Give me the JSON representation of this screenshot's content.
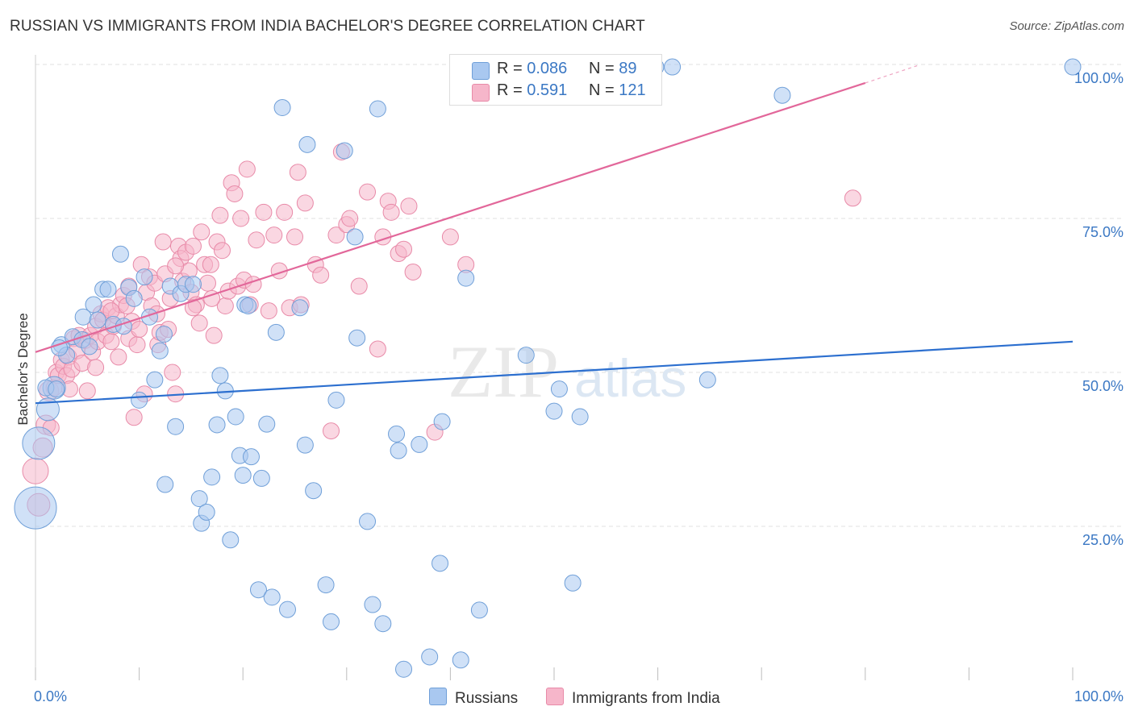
{
  "header": {
    "title": "RUSSIAN VS IMMIGRANTS FROM INDIA BACHELOR'S DEGREE CORRELATION CHART",
    "source": "Source: ZipAtlas.com"
  },
  "watermark": {
    "zip": "ZIP",
    "atlas": "atlas"
  },
  "legend_top": {
    "rows": [
      {
        "r_label": "R = ",
        "r_value": "0.086",
        "n_label": "N = ",
        "n_value": "89"
      },
      {
        "r_label": "R = ",
        "r_value": "0.591",
        "n_label": "N = ",
        "n_value": "121"
      }
    ]
  },
  "legend_bottom": {
    "items": [
      "Russians",
      "Immigrants from India"
    ]
  },
  "colors": {
    "blue_fill": "#a9c8f0",
    "blue_stroke": "#6f9fd8",
    "blue_line": "#2c6fcf",
    "pink_fill": "#f6b6ca",
    "pink_stroke": "#e88aa8",
    "pink_line": "#e2679a",
    "axis_label": "#3b78c4",
    "grid": "#e2e2e2"
  },
  "chart_data": {
    "type": "scatter",
    "title": "RUSSIAN VS IMMIGRANTS FROM INDIA BACHELOR'S DEGREE CORRELATION CHART",
    "xlabel": "",
    "ylabel": "Bachelor's Degree",
    "xlim": [
      0,
      100
    ],
    "ylim": [
      0,
      102
    ],
    "x_tick_labels": [
      "0.0%",
      "100.0%"
    ],
    "y_ticks": [
      25,
      50,
      75,
      100
    ],
    "y_tick_labels": [
      "25.0%",
      "50.0%",
      "75.0%",
      "100.0%"
    ],
    "grid": true,
    "legend": "top-center",
    "series": [
      {
        "name": "Russians",
        "r": 0.086,
        "n": 89,
        "trend": {
          "x": [
            0,
            100
          ],
          "y": [
            45.0,
            55.0
          ]
        },
        "points": [
          [
            0,
            28.0,
            26
          ],
          [
            0.3,
            38.5,
            20
          ],
          [
            1.2,
            44.0,
            14
          ],
          [
            1.8,
            47.5,
            14
          ],
          [
            2.5,
            54.5,
            10
          ],
          [
            3.0,
            52.8,
            10
          ],
          [
            3.6,
            55.8,
            10
          ],
          [
            4.5,
            55.3,
            10
          ],
          [
            4.6,
            59.0,
            10
          ],
          [
            5.2,
            54.2,
            10
          ],
          [
            5.6,
            61.0,
            10
          ],
          [
            6.0,
            58.5,
            10
          ],
          [
            6.5,
            63.5,
            10
          ],
          [
            7.0,
            63.5,
            10
          ],
          [
            7.5,
            57.8,
            10
          ],
          [
            8.2,
            69.2,
            10
          ],
          [
            8.5,
            57.5,
            10
          ],
          [
            9.0,
            63.8,
            10
          ],
          [
            9.5,
            62.0,
            10
          ],
          [
            10.0,
            45.5,
            10
          ],
          [
            10.5,
            65.5,
            10
          ],
          [
            11.0,
            59.0,
            10
          ],
          [
            11.5,
            48.8,
            10
          ],
          [
            12.0,
            53.5,
            10
          ],
          [
            12.4,
            56.2,
            10
          ],
          [
            12.5,
            31.8,
            10
          ],
          [
            13.0,
            64.0,
            10
          ],
          [
            13.5,
            41.2,
            10
          ],
          [
            14.0,
            62.8,
            10
          ],
          [
            14.5,
            64.3,
            10
          ],
          [
            15.2,
            64.3,
            10
          ],
          [
            15.8,
            29.5,
            10
          ],
          [
            16.0,
            25.5,
            10
          ],
          [
            16.5,
            27.3,
            10
          ],
          [
            17.0,
            33.0,
            10
          ],
          [
            17.5,
            41.5,
            10
          ],
          [
            17.8,
            49.5,
            10
          ],
          [
            18.3,
            47.0,
            10
          ],
          [
            18.8,
            22.8,
            10
          ],
          [
            19.3,
            42.8,
            10
          ],
          [
            19.7,
            36.5,
            10
          ],
          [
            20.0,
            33.3,
            10
          ],
          [
            20.2,
            61.0,
            10
          ],
          [
            20.8,
            36.3,
            10
          ],
          [
            21.5,
            14.7,
            10
          ],
          [
            21.8,
            32.8,
            10
          ],
          [
            22.3,
            41.6,
            10
          ],
          [
            22.8,
            13.5,
            10
          ],
          [
            23.2,
            56.5,
            10
          ],
          [
            23.8,
            93.0,
            10
          ],
          [
            24.3,
            11.5,
            10
          ],
          [
            25.5,
            60.5,
            10
          ],
          [
            26.0,
            38.2,
            10
          ],
          [
            26.2,
            87.0,
            10
          ],
          [
            26.8,
            30.8,
            10
          ],
          [
            28.0,
            15.5,
            10
          ],
          [
            28.5,
            9.5,
            10
          ],
          [
            29.0,
            45.5,
            10
          ],
          [
            29.8,
            86.0,
            10
          ],
          [
            30.8,
            72.0,
            10
          ],
          [
            31.0,
            55.6,
            10
          ],
          [
            32.0,
            25.8,
            10
          ],
          [
            32.5,
            12.3,
            10
          ],
          [
            33.0,
            92.8,
            10
          ],
          [
            33.5,
            9.2,
            10
          ],
          [
            34.8,
            40.0,
            10
          ],
          [
            35.0,
            37.3,
            10
          ],
          [
            35.5,
            1.8,
            10
          ],
          [
            37.0,
            38.3,
            10
          ],
          [
            38.0,
            3.8,
            10
          ],
          [
            39.0,
            19.0,
            10
          ],
          [
            39.2,
            42.0,
            10
          ],
          [
            41.0,
            3.3,
            10
          ],
          [
            41.5,
            65.3,
            10
          ],
          [
            42.8,
            11.4,
            10
          ],
          [
            47.3,
            52.8,
            10
          ],
          [
            50.0,
            43.7,
            10
          ],
          [
            50.5,
            47.3,
            10
          ],
          [
            51.8,
            15.8,
            10
          ],
          [
            52.5,
            42.8,
            10
          ],
          [
            59.8,
            99.6,
            10
          ],
          [
            61.4,
            99.6,
            10
          ],
          [
            64.8,
            48.8,
            10
          ],
          [
            72.0,
            95.0,
            10
          ],
          [
            100.0,
            99.6,
            10
          ],
          [
            1.0,
            47.5,
            10
          ],
          [
            2.0,
            47.3,
            10
          ],
          [
            2.3,
            54.0,
            10
          ],
          [
            20.5,
            60.8,
            10
          ]
        ]
      },
      {
        "name": "Immigrants from India",
        "r": 0.591,
        "n": 121,
        "trend": {
          "x": [
            0,
            80
          ],
          "y": [
            53.3,
            97.0
          ]
        },
        "trend_dashed": {
          "x": [
            80,
            85
          ],
          "y": [
            97.0,
            99.8
          ]
        },
        "points": [
          [
            0,
            34.0,
            16
          ],
          [
            0.3,
            28.5,
            14
          ],
          [
            0.7,
            37.8,
            12
          ],
          [
            1.0,
            41.5,
            12
          ],
          [
            1.3,
            47.0,
            12
          ],
          [
            1.5,
            41.0,
            10
          ],
          [
            1.8,
            47.5,
            10
          ],
          [
            2.0,
            50.0,
            10
          ],
          [
            2.2,
            49.5,
            10
          ],
          [
            2.5,
            52.0,
            10
          ],
          [
            2.7,
            51.0,
            10
          ],
          [
            3.0,
            49.5,
            10
          ],
          [
            3.2,
            52.5,
            10
          ],
          [
            3.5,
            50.5,
            10
          ],
          [
            3.7,
            55.5,
            10
          ],
          [
            4.0,
            53.5,
            10
          ],
          [
            4.2,
            56.0,
            10
          ],
          [
            4.5,
            51.5,
            10
          ],
          [
            4.8,
            55.2,
            10
          ],
          [
            5.0,
            47.0,
            10
          ],
          [
            5.3,
            56.0,
            10
          ],
          [
            5.5,
            53.3,
            10
          ],
          [
            5.8,
            57.5,
            10
          ],
          [
            6.0,
            55.0,
            10
          ],
          [
            6.3,
            59.5,
            10
          ],
          [
            6.5,
            58.5,
            10
          ],
          [
            6.8,
            56.0,
            10
          ],
          [
            7.0,
            60.5,
            10
          ],
          [
            7.3,
            55.0,
            10
          ],
          [
            7.5,
            57.5,
            10
          ],
          [
            7.8,
            59.2,
            10
          ],
          [
            8.0,
            52.5,
            10
          ],
          [
            8.2,
            61.0,
            10
          ],
          [
            8.5,
            62.5,
            10
          ],
          [
            8.8,
            60.8,
            10
          ],
          [
            9.0,
            55.5,
            10
          ],
          [
            9.3,
            58.3,
            10
          ],
          [
            9.5,
            42.7,
            10
          ],
          [
            9.8,
            54.5,
            10
          ],
          [
            10.0,
            57.0,
            10
          ],
          [
            10.2,
            67.5,
            10
          ],
          [
            10.5,
            46.5,
            10
          ],
          [
            10.7,
            63.0,
            10
          ],
          [
            11.0,
            65.5,
            10
          ],
          [
            11.2,
            60.8,
            10
          ],
          [
            11.5,
            64.5,
            10
          ],
          [
            11.8,
            54.5,
            10
          ],
          [
            12.0,
            56.5,
            10
          ],
          [
            12.3,
            71.2,
            10
          ],
          [
            12.5,
            66.0,
            10
          ],
          [
            12.8,
            57.0,
            10
          ],
          [
            13.0,
            62.0,
            10
          ],
          [
            13.2,
            50.0,
            10
          ],
          [
            13.5,
            46.5,
            10
          ],
          [
            13.8,
            70.5,
            10
          ],
          [
            14.0,
            68.5,
            10
          ],
          [
            14.2,
            64.8,
            10
          ],
          [
            14.5,
            69.5,
            10
          ],
          [
            14.8,
            66.5,
            10
          ],
          [
            15.0,
            63.0,
            10
          ],
          [
            15.2,
            70.5,
            10
          ],
          [
            15.5,
            61.0,
            10
          ],
          [
            15.8,
            58.0,
            10
          ],
          [
            16.0,
            72.8,
            10
          ],
          [
            16.3,
            67.5,
            10
          ],
          [
            16.6,
            64.5,
            10
          ],
          [
            16.9,
            67.5,
            10
          ],
          [
            17.2,
            56.0,
            10
          ],
          [
            17.5,
            71.2,
            10
          ],
          [
            17.8,
            75.5,
            10
          ],
          [
            18.0,
            69.8,
            10
          ],
          [
            18.3,
            60.8,
            10
          ],
          [
            18.6,
            63.2,
            10
          ],
          [
            18.9,
            80.8,
            10
          ],
          [
            19.2,
            79.0,
            10
          ],
          [
            19.5,
            64.0,
            10
          ],
          [
            19.8,
            75.0,
            10
          ],
          [
            20.1,
            65.0,
            10
          ],
          [
            20.4,
            83.0,
            10
          ],
          [
            20.7,
            61.0,
            10
          ],
          [
            21.0,
            64.3,
            10
          ],
          [
            21.3,
            71.5,
            10
          ],
          [
            22.0,
            76.0,
            10
          ],
          [
            22.5,
            60.0,
            10
          ],
          [
            23.0,
            72.3,
            10
          ],
          [
            23.5,
            66.5,
            10
          ],
          [
            24.0,
            76.0,
            10
          ],
          [
            24.5,
            60.5,
            10
          ],
          [
            25.0,
            72.0,
            10
          ],
          [
            25.3,
            82.5,
            10
          ],
          [
            25.6,
            61.0,
            10
          ],
          [
            26.0,
            77.5,
            10
          ],
          [
            27.0,
            67.5,
            10
          ],
          [
            27.5,
            65.8,
            10
          ],
          [
            28.5,
            40.5,
            10
          ],
          [
            29.0,
            72.3,
            10
          ],
          [
            29.5,
            85.8,
            10
          ],
          [
            30.0,
            74.0,
            10
          ],
          [
            30.3,
            75.0,
            10
          ],
          [
            31.2,
            64.0,
            10
          ],
          [
            32.0,
            79.3,
            10
          ],
          [
            33.0,
            53.8,
            10
          ],
          [
            33.5,
            72.0,
            10
          ],
          [
            34.0,
            77.8,
            10
          ],
          [
            34.3,
            76.0,
            10
          ],
          [
            35.0,
            69.3,
            10
          ],
          [
            35.5,
            70.0,
            10
          ],
          [
            36.0,
            77.0,
            10
          ],
          [
            36.4,
            66.3,
            10
          ],
          [
            38.5,
            40.3,
            10
          ],
          [
            40.0,
            72.0,
            10
          ],
          [
            41.5,
            67.5,
            10
          ],
          [
            78.8,
            78.3,
            10
          ],
          [
            3.3,
            47.3,
            10
          ],
          [
            5.8,
            50.8,
            10
          ],
          [
            7.3,
            60.0,
            10
          ],
          [
            9.0,
            64.0,
            10
          ],
          [
            11.7,
            59.5,
            10
          ],
          [
            13.5,
            67.3,
            10
          ],
          [
            15.2,
            60.5,
            10
          ],
          [
            17.0,
            62.0,
            10
          ]
        ]
      }
    ]
  }
}
